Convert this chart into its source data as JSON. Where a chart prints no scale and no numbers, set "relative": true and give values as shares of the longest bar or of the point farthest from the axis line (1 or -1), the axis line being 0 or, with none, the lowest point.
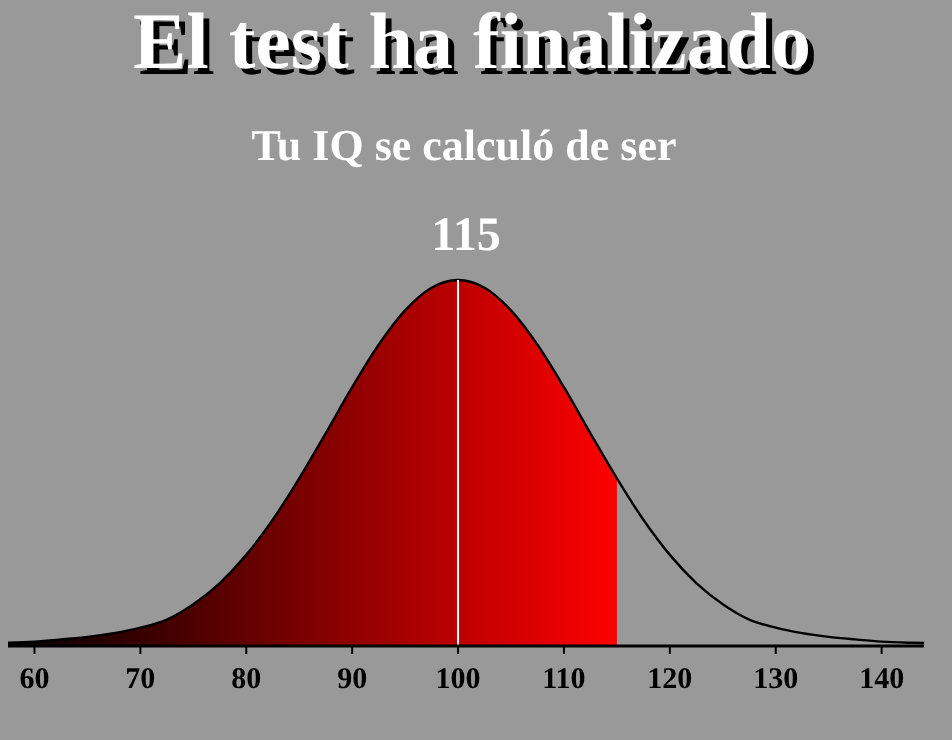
{
  "chart_data": {
    "type": "area",
    "title": "El test ha finalizado",
    "subtitle": "Tu IQ se calculó de ser",
    "annotations": [
      "115"
    ],
    "relative": true,
    "xlim": [
      57.5,
      144
    ],
    "xticks": [
      60,
      70,
      80,
      90,
      100,
      110,
      120,
      130,
      140
    ],
    "grid": false,
    "series": [
      {
        "color": "#ff0000",
        "x": [
          57.5,
          60,
          62.5,
          65,
          67.5,
          70,
          72.5,
          75,
          77.5,
          80,
          82.5,
          85,
          87.5,
          90,
          92.5,
          95,
          97.5,
          100,
          102.5,
          105,
          107.5,
          110,
          112.5,
          115
        ],
        "values": [
          0.009,
          0.012,
          0.018,
          0.025,
          0.035,
          0.05,
          0.072,
          0.114,
          0.172,
          0.249,
          0.345,
          0.458,
          0.581,
          0.707,
          0.823,
          0.917,
          0.979,
          1,
          0.979,
          0.917,
          0.823,
          0.707,
          0.581,
          0.458
        ]
      },
      {
        "type": "line",
        "color": "#000000",
        "x": [
          57.5,
          60,
          62.5,
          65,
          67.5,
          70,
          72.5,
          75,
          77.5,
          80,
          82.5,
          85,
          87.5,
          90,
          92.5,
          95,
          97.5,
          100,
          102.5,
          105,
          107.5,
          110,
          112.5,
          115,
          117.5,
          120,
          122.5,
          125,
          127.5,
          130,
          132.5,
          135,
          137.5,
          140,
          142.5,
          144
        ],
        "values": [
          0.009,
          0.012,
          0.018,
          0.025,
          0.035,
          0.05,
          0.072,
          0.114,
          0.172,
          0.249,
          0.345,
          0.458,
          0.581,
          0.707,
          0.823,
          0.917,
          0.979,
          1,
          0.979,
          0.917,
          0.823,
          0.707,
          0.581,
          0.458,
          0.345,
          0.249,
          0.172,
          0.114,
          0.072,
          0.05,
          0.035,
          0.025,
          0.018,
          0.012,
          0.009,
          0.008
        ]
      }
    ],
    "ref_lines": [
      {
        "axis": "x",
        "value": 100,
        "color": "#ffffff"
      }
    ]
  }
}
